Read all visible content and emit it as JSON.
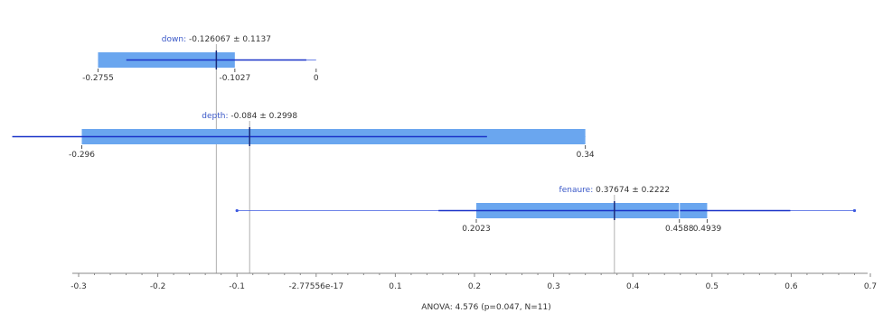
{
  "colors": {
    "box_fill": "#6aa6ef",
    "whisker": "#1a33c8",
    "thin_whisker": "#3d5ae0",
    "median": "#1a2a7a",
    "guide": "#b0b0b0",
    "axis": "#888888",
    "label_name": "#3a58c8"
  },
  "chart_data": {
    "type": "boxplot",
    "xlim": [
      -0.3,
      0.7
    ],
    "axis_ticks": [
      {
        "value": -0.3,
        "label": "-0.3"
      },
      {
        "value": -0.2,
        "label": "-0.2"
      },
      {
        "value": -0.1,
        "label": "-0.1"
      },
      {
        "value": 0.0,
        "label": "-2.77556e-17"
      },
      {
        "value": 0.1,
        "label": "0.1"
      },
      {
        "value": 0.2,
        "label": "0.2"
      },
      {
        "value": 0.3,
        "label": "0.3"
      },
      {
        "value": 0.4,
        "label": "0.4"
      },
      {
        "value": 0.5,
        "label": "0.5"
      },
      {
        "value": 0.6,
        "label": "0.6"
      },
      {
        "value": 0.7,
        "label": "0.7"
      }
    ],
    "footer": "ANOVA: 4.576 (p=0.047, N=11)",
    "groups": [
      {
        "name": "down",
        "stat": "-0.126067 ± 0.1137",
        "mean": -0.126067,
        "q1": -0.2755,
        "q3": -0.1027,
        "max": 0,
        "sd_low": -0.2398,
        "sd_high": -0.0124,
        "outer_low": -0.2755,
        "outer_high": 0,
        "labels": [
          {
            "value": -0.2755,
            "text": "-0.2755"
          },
          {
            "value": -0.1027,
            "text": "-0.1027"
          },
          {
            "value": 0,
            "text": "0"
          }
        ]
      },
      {
        "name": "depth",
        "stat": "-0.084 ± 0.2998",
        "mean": -0.084,
        "q1": -0.296,
        "q3": 0.34,
        "sd_low": -0.3838,
        "sd_high": 0.2158,
        "outer_low": -0.3838,
        "outer_high": 0.34,
        "labels": [
          {
            "value": -0.296,
            "text": "-0.296"
          },
          {
            "value": 0.34,
            "text": "0.34"
          }
        ]
      },
      {
        "name": "fenaure",
        "stat": "0.37674 ± 0.2222",
        "mean": 0.37674,
        "q1": 0.2023,
        "q3": 0.4939,
        "median": 0.4588,
        "sd_low": 0.15454,
        "sd_high": 0.59894,
        "outer_low": -0.1,
        "outer_high": 0.68,
        "labels": [
          {
            "value": 0.2023,
            "text": "0.2023"
          },
          {
            "value": 0.4588,
            "text": "0.4588"
          },
          {
            "value": 0.4939,
            "text": "0.4939"
          }
        ]
      }
    ]
  }
}
